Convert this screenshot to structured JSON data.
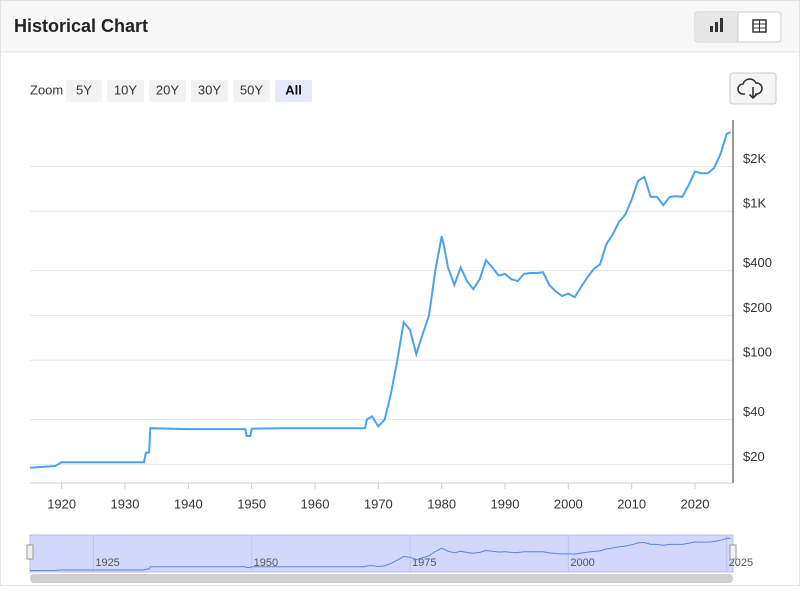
{
  "header": {
    "title": "Historical Chart"
  },
  "zoom": {
    "label": "Zoom",
    "buttons": [
      "5Y",
      "10Y",
      "20Y",
      "30Y",
      "50Y",
      "All"
    ],
    "selected": 5
  },
  "chart_data": {
    "type": "line",
    "color": "#4aa3ea",
    "log_y": true,
    "grid": true,
    "xlim": [
      1915,
      2026
    ],
    "ylim": [
      15,
      4100
    ],
    "xticks": [
      1920,
      1930,
      1940,
      1950,
      1960,
      1970,
      1980,
      1990,
      2000,
      2010,
      2020
    ],
    "yticks": [
      {
        "value": 20,
        "label": "$20"
      },
      {
        "value": 40,
        "label": "$40"
      },
      {
        "value": 100,
        "label": "$100"
      },
      {
        "value": 200,
        "label": "$200"
      },
      {
        "value": 400,
        "label": "$400"
      },
      {
        "value": 1000,
        "label": "$1K"
      },
      {
        "value": 2000,
        "label": "$2K"
      }
    ],
    "navigator_xticks": [
      1925,
      1950,
      1975,
      2000,
      2025
    ],
    "x": [
      1915,
      1919,
      1920,
      1933,
      1933.3,
      1933.8,
      1934,
      1940,
      1949,
      1949.2,
      1949.8,
      1950,
      1955,
      1967.9,
      1968.2,
      1969,
      1970,
      1971,
      1972,
      1973,
      1974,
      1975,
      1976,
      1977,
      1978,
      1979,
      1980,
      1980.5,
      1981,
      1982,
      1983,
      1984,
      1985,
      1986,
      1987,
      1988,
      1989,
      1990,
      1991,
      1992,
      1993,
      1994,
      1995,
      1996,
      1997,
      1998,
      1999,
      2000,
      2001,
      2002,
      2003,
      2004,
      2005,
      2006,
      2007,
      2008,
      2009,
      2010,
      2011,
      2012,
      2013,
      2014,
      2015,
      2016,
      2017,
      2018,
      2019,
      2020,
      2021,
      2022,
      2023,
      2024,
      2025,
      2025.6
    ],
    "values": [
      19,
      19.5,
      20.7,
      20.7,
      24,
      24,
      35,
      34.5,
      34.5,
      31,
      31,
      34.7,
      35,
      35,
      40,
      42,
      36,
      40,
      60,
      100,
      180,
      160,
      110,
      150,
      200,
      400,
      680,
      550,
      420,
      320,
      420,
      340,
      300,
      350,
      470,
      420,
      370,
      380,
      350,
      340,
      380,
      385,
      385,
      390,
      320,
      290,
      270,
      280,
      265,
      310,
      360,
      410,
      440,
      600,
      700,
      850,
      950,
      1200,
      1600,
      1700,
      1250,
      1250,
      1100,
      1250,
      1260,
      1250,
      1500,
      1850,
      1800,
      1800,
      1950,
      2400,
      3300,
      3400
    ]
  }
}
